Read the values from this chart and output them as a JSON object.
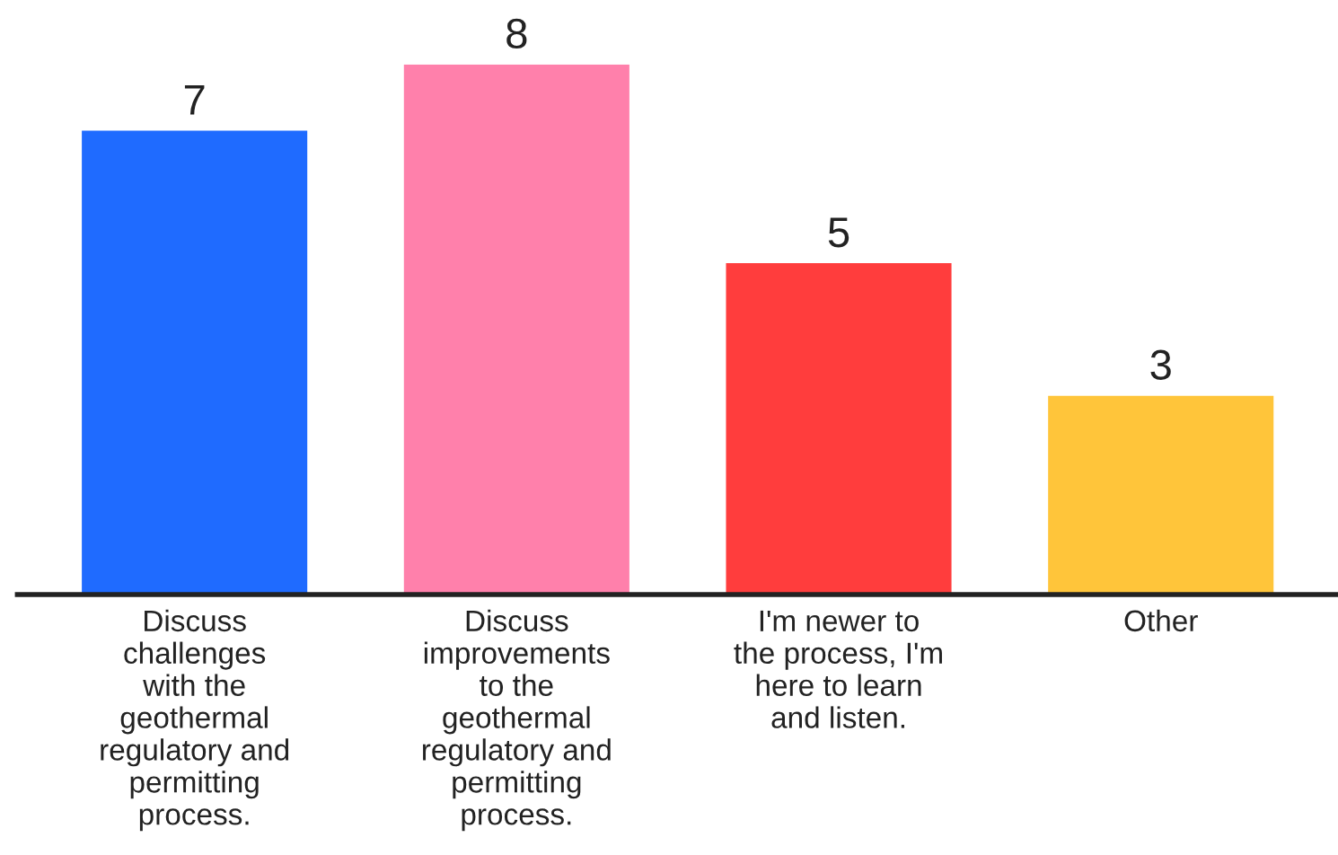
{
  "chart_data": {
    "type": "bar",
    "categories": [
      "Discuss\nchallenges\nwith the\ngeothermal\nregulatory and\npermitting\nprocess.",
      "Discuss\nimprovements\nto the\ngeothermal\nregulatory and\npermitting\nprocess.",
      "I'm newer to\nthe process, I'm\nhere to learn\nand listen.",
      "Other"
    ],
    "values": [
      7,
      8,
      5,
      3
    ],
    "colors": [
      "#1f6bff",
      "#ff80ab",
      "#ff3d3d",
      "#ffc53a"
    ],
    "data_labels": true,
    "grid": false,
    "legend": false
  }
}
